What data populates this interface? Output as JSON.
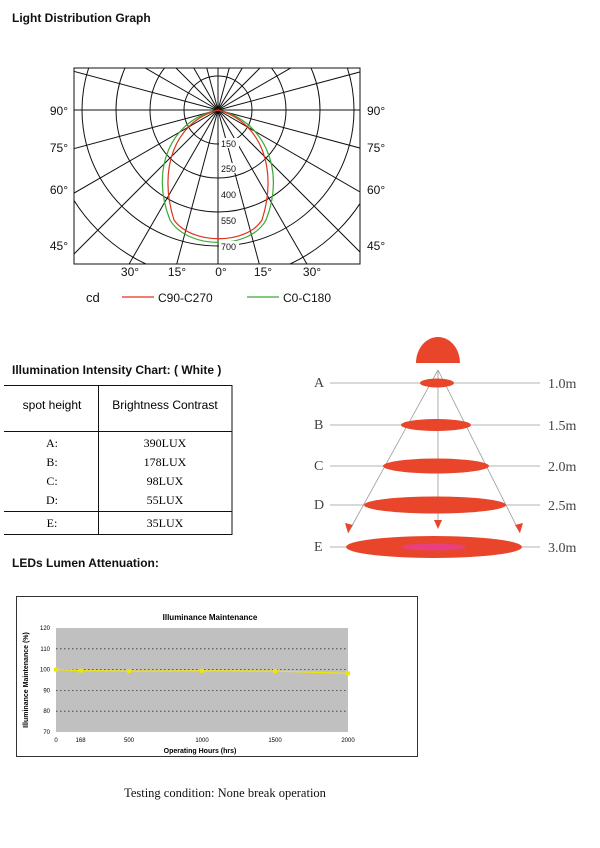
{
  "light_distribution": {
    "title": "Light Distribution Graph",
    "left_angles": [
      "90°",
      "75°",
      "60°",
      "45°"
    ],
    "right_angles": [
      "90°",
      "75°",
      "60°",
      "45°"
    ],
    "bottom_angles": [
      "30°",
      "15°",
      "0°",
      "15°",
      "30°"
    ],
    "radial_values": [
      "150",
      "250",
      "400",
      "550",
      "700"
    ],
    "unit": "cd",
    "legend": [
      {
        "label": "C90-C270",
        "color": "#e0321e"
      },
      {
        "label": "C0-C180",
        "color": "#3aa935"
      }
    ]
  },
  "intensity_chart": {
    "title": "Illumination Intensity Chart: ( White )",
    "headers": [
      "spot height",
      "Brightness Contrast"
    ],
    "rows": [
      {
        "label": "A:",
        "value": "390LUX"
      },
      {
        "label": "B:",
        "value": "178LUX"
      },
      {
        "label": "C:",
        "value": "98LUX"
      },
      {
        "label": "D:",
        "value": "55LUX"
      },
      {
        "label": "E:",
        "value": "35LUX"
      }
    ]
  },
  "beam_diagram": {
    "accent": "#e8452a",
    "center_color": "#e8407f",
    "levels": [
      {
        "letter": "A",
        "distance": "1.0m"
      },
      {
        "letter": "B",
        "distance": "1.5m"
      },
      {
        "letter": "C",
        "distance": "2.0m"
      },
      {
        "letter": "D",
        "distance": "2.5m"
      },
      {
        "letter": "E",
        "distance": "3.0m"
      }
    ]
  },
  "lumen": {
    "title": "LEDs Lumen Attenuation:",
    "chart_data": {
      "type": "line",
      "title": "Illuminance Maintenance",
      "xlabel": "Operating Hours (hrs)",
      "ylabel": "Illuminance Maintenance (%)",
      "x": [
        0,
        168,
        500,
        1000,
        1500,
        2000
      ],
      "x_tick_labels": [
        "0",
        "168",
        "500",
        "1000",
        "1500",
        "2000"
      ],
      "y_ticks": [
        "120",
        "110",
        "100",
        "90",
        "80",
        "70"
      ],
      "ylim": [
        70,
        120
      ],
      "series": [
        {
          "values": [
            100,
            99.5,
            99.3,
            99.4,
            99.3,
            98.2
          ],
          "color": "#f2e600"
        }
      ],
      "plot_bg": "#c0c0c0",
      "grid": true
    },
    "caption": "Testing condition: None break operation"
  }
}
